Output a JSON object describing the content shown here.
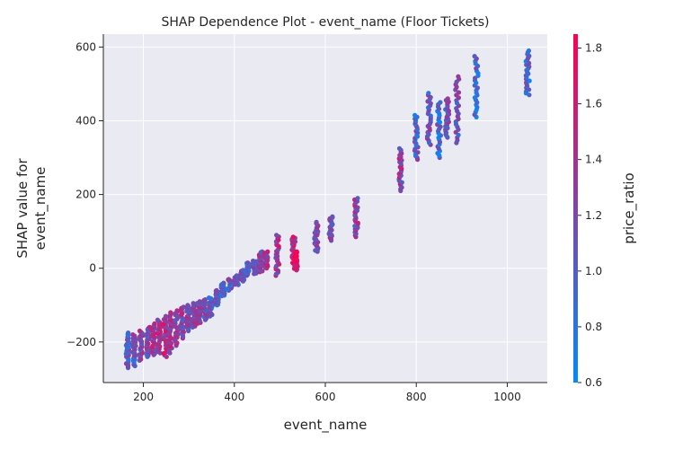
{
  "chart_data": {
    "type": "scatter",
    "title": "SHAP Dependence Plot - event_name (Floor Tickets)",
    "xlabel": "event_name",
    "ylabel_lines": [
      "SHAP value for",
      "event_name"
    ],
    "xlim": [
      112,
      1088
    ],
    "ylim": [
      -310,
      635
    ],
    "x_ticks": [
      200,
      400,
      600,
      800,
      1000
    ],
    "y_ticks": [
      -200,
      0,
      200,
      400,
      600
    ],
    "x_tick_labels": [
      "200",
      "400",
      "600",
      "800",
      "1000"
    ],
    "y_tick_labels": [
      "−200",
      "0",
      "200",
      "400",
      "600"
    ],
    "grid": true,
    "background": "#eaeaf2",
    "colorbar": {
      "label": "price_ratio",
      "range": [
        0.6,
        1.85
      ],
      "ticks": [
        0.6,
        0.8,
        1.0,
        1.2,
        1.4,
        1.6,
        1.8
      ],
      "tick_labels": [
        "0.6",
        "0.8",
        "1.0",
        "1.2",
        "1.4",
        "1.6",
        "1.8"
      ],
      "colors": [
        "#008bfb",
        "#ff0052"
      ]
    },
    "columns": [
      {
        "x": 165,
        "y_min": -270,
        "y_max": -175,
        "c": 1.0
      },
      {
        "x": 180,
        "y_min": -265,
        "y_max": -180,
        "c": 1.1
      },
      {
        "x": 195,
        "y_min": -250,
        "y_max": -170,
        "c": 1.2
      },
      {
        "x": 210,
        "y_min": -240,
        "y_max": -160,
        "c": 1.2
      },
      {
        "x": 222,
        "y_min": -235,
        "y_max": -150,
        "c": 1.3
      },
      {
        "x": 235,
        "y_min": -230,
        "y_max": -140,
        "c": 1.4
      },
      {
        "x": 248,
        "y_min": -240,
        "y_max": -130,
        "c": 1.5
      },
      {
        "x": 260,
        "y_min": -230,
        "y_max": -120,
        "c": 1.4
      },
      {
        "x": 272,
        "y_min": -210,
        "y_max": -115,
        "c": 1.3
      },
      {
        "x": 285,
        "y_min": -190,
        "y_max": -105,
        "c": 1.3
      },
      {
        "x": 298,
        "y_min": -170,
        "y_max": -100,
        "c": 1.2
      },
      {
        "x": 310,
        "y_min": -160,
        "y_max": -95,
        "c": 1.2
      },
      {
        "x": 322,
        "y_min": -150,
        "y_max": -90,
        "c": 1.3
      },
      {
        "x": 335,
        "y_min": -140,
        "y_max": -85,
        "c": 1.2
      },
      {
        "x": 348,
        "y_min": -130,
        "y_max": -80,
        "c": 1.1
      },
      {
        "x": 362,
        "y_min": -100,
        "y_max": -60,
        "c": 1.1
      },
      {
        "x": 375,
        "y_min": -75,
        "y_max": -40,
        "c": 1.0
      },
      {
        "x": 390,
        "y_min": -60,
        "y_max": -30,
        "c": 1.0
      },
      {
        "x": 405,
        "y_min": -45,
        "y_max": -20,
        "c": 1.1
      },
      {
        "x": 418,
        "y_min": -35,
        "y_max": -5,
        "c": 1.1
      },
      {
        "x": 430,
        "y_min": -20,
        "y_max": 15,
        "c": 1.0
      },
      {
        "x": 445,
        "y_min": -15,
        "y_max": 20,
        "c": 1.1
      },
      {
        "x": 458,
        "y_min": -10,
        "y_max": 45,
        "c": 1.3
      },
      {
        "x": 470,
        "y_min": 0,
        "y_max": 45,
        "c": 1.4
      },
      {
        "x": 495,
        "y_min": -20,
        "y_max": 90,
        "c": 1.4
      },
      {
        "x": 530,
        "y_min": 5,
        "y_max": 85,
        "c": 1.5
      },
      {
        "x": 535,
        "y_min": -5,
        "y_max": 45,
        "c": 1.8
      },
      {
        "x": 580,
        "y_min": 45,
        "y_max": 125,
        "c": 1.2
      },
      {
        "x": 612,
        "y_min": 75,
        "y_max": 140,
        "c": 1.2
      },
      {
        "x": 668,
        "y_min": 85,
        "y_max": 190,
        "c": 1.3
      },
      {
        "x": 765,
        "y_min": 210,
        "y_max": 325,
        "c": 1.3
      },
      {
        "x": 800,
        "y_min": 295,
        "y_max": 415,
        "c": 1.0
      },
      {
        "x": 828,
        "y_min": 335,
        "y_max": 475,
        "c": 1.1
      },
      {
        "x": 850,
        "y_min": 300,
        "y_max": 450,
        "c": 0.9
      },
      {
        "x": 868,
        "y_min": 355,
        "y_max": 460,
        "c": 1.1
      },
      {
        "x": 890,
        "y_min": 340,
        "y_max": 520,
        "c": 1.1
      },
      {
        "x": 932,
        "y_min": 410,
        "y_max": 575,
        "c": 0.9
      },
      {
        "x": 1045,
        "y_min": 470,
        "y_max": 590,
        "c": 0.9
      }
    ]
  }
}
